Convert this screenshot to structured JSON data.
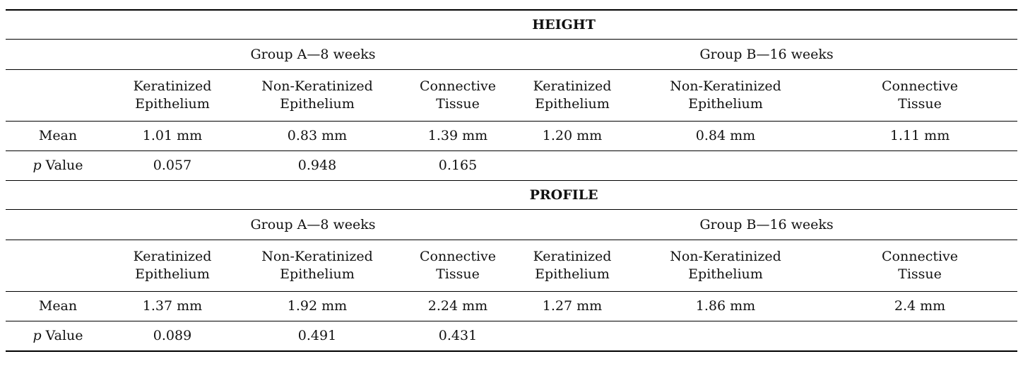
{
  "sections": [
    {
      "title": "HEIGHT",
      "group_a": "Group A—8 weeks",
      "group_b": "Group B—16 weeks",
      "columns": [
        [
          "Keratinized",
          "Epithelium"
        ],
        [
          "Non-Keratinized",
          "Epithelium"
        ],
        [
          "Connective",
          "Tissue"
        ],
        [
          "Keratinized",
          "Epithelium"
        ],
        [
          "Non-Keratinized",
          "Epithelium"
        ],
        [
          "Connective",
          "Tissue"
        ]
      ],
      "mean_label": "Mean",
      "mean": [
        "1.01 mm",
        "0.83 mm",
        "1.39 mm",
        "1.20 mm",
        "0.84 mm",
        "1.11 mm"
      ],
      "p_label_italic": "p",
      "p_label_rest": " Value",
      "p": [
        "0.057",
        "0.948",
        "0.165"
      ]
    },
    {
      "title": "PROFILE",
      "group_a": "Group A—8 weeks",
      "group_b": "Group B—16 weeks",
      "columns": [
        [
          "Keratinized",
          "Epithelium"
        ],
        [
          "Non-Keratinized",
          "Epithelium"
        ],
        [
          "Connective",
          "Tissue"
        ],
        [
          "Keratinized",
          "Epithelium"
        ],
        [
          "Non-Keratinized",
          "Epithelium"
        ],
        [
          "Connective",
          "Tissue"
        ]
      ],
      "mean_label": "Mean",
      "mean": [
        "1.37 mm",
        "1.92 mm",
        "2.24 mm",
        "1.27 mm",
        "1.86 mm",
        "2.4 mm"
      ],
      "p_label_italic": "p",
      "p_label_rest": " Value",
      "p": [
        "0.089",
        "0.491",
        "0.431"
      ]
    }
  ]
}
